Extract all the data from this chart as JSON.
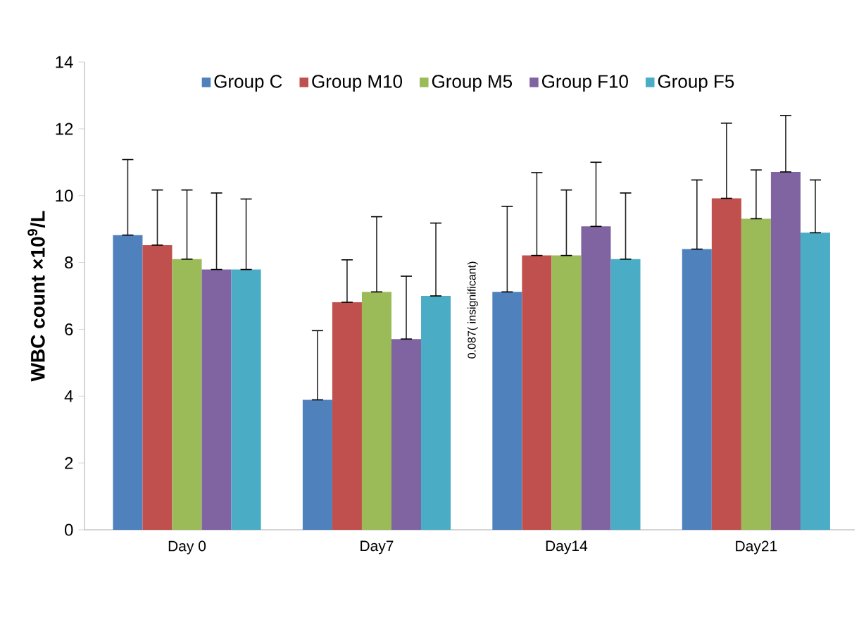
{
  "chart_data": {
    "type": "bar",
    "ylabel": "**WBC count ×10$^{9}$/L**",
    "categories": [
      "Day 0",
      "Day7",
      "Day14",
      "Day21"
    ],
    "series": [
      {
        "name": "Group C",
        "color": "#4f81bd",
        "values": [
          8.82,
          3.89,
          7.12,
          8.4
        ],
        "errors": [
          [
            8.82,
            11.08
          ],
          [
            3.89,
            5.96
          ],
          [
            7.12,
            9.68
          ],
          [
            8.4,
            10.47
          ]
        ]
      },
      {
        "name": "Group M10",
        "color": "#c0504d",
        "values": [
          8.52,
          6.81,
          8.21,
          9.92
        ],
        "errors": [
          [
            8.52,
            10.17
          ],
          [
            6.81,
            8.08
          ],
          [
            8.21,
            10.69
          ],
          [
            9.92,
            12.17
          ]
        ]
      },
      {
        "name": "Group M5",
        "color": "#9bbb59",
        "values": [
          8.1,
          7.12,
          8.21,
          9.31
        ],
        "errors": [
          [
            8.1,
            10.17
          ],
          [
            7.12,
            9.37
          ],
          [
            8.21,
            10.17
          ],
          [
            9.31,
            10.77
          ]
        ]
      },
      {
        "name": "Group F10",
        "color": "#8064a2",
        "values": [
          7.79,
          5.71,
          9.08,
          10.71
        ],
        "errors": [
          [
            7.79,
            10.08
          ],
          [
            5.71,
            7.59
          ],
          [
            9.08,
            11.0
          ],
          [
            10.71,
            12.4
          ]
        ]
      },
      {
        "name": "Group F5",
        "color": "#4bacc6",
        "values": [
          7.79,
          7.0,
          8.1,
          8.89
        ],
        "errors": [
          [
            7.79,
            9.9
          ],
          [
            7.0,
            9.18
          ],
          [
            8.1,
            10.08
          ],
          [
            8.89,
            10.47
          ]
        ]
      }
    ],
    "ylim": [
      0,
      14
    ],
    "yticks": [
      0,
      2,
      4,
      6,
      8,
      10,
      12,
      14
    ],
    "grid": false,
    "legend": "top",
    "annotations": [
      "0.087( insignificant)"
    ]
  }
}
